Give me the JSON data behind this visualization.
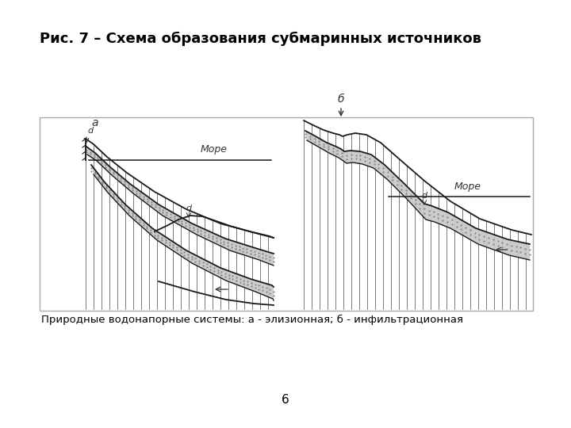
{
  "title": "Рис. 7 – Схема образования субмаринных источников",
  "caption": "Природные водонапорные системы: а - элизионная; б - инфильтрационная",
  "page_number": "6",
  "bg_color": "#ffffff",
  "box_edge_color": "#aaaaaa",
  "line_color": "#1a1a1a",
  "hatch_color": "#444444",
  "aquifer_color": "#c8c8c8",
  "label_a": "а",
  "label_b": "б",
  "sea_a": "Море",
  "sea_b": "Море"
}
